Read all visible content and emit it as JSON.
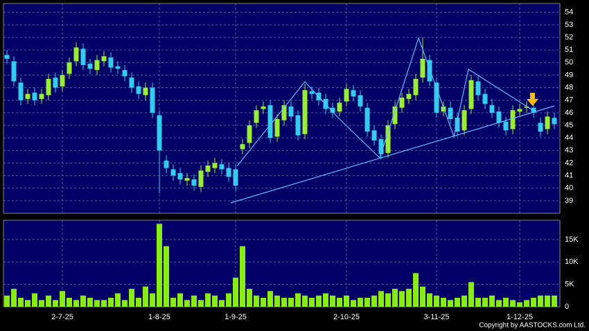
{
  "chart_data": {
    "type": "candlestick",
    "categories": [
      null,
      null,
      null,
      null,
      null,
      null,
      null,
      null,
      "2-7-25",
      null,
      null,
      null,
      null,
      null,
      null,
      null,
      null,
      null,
      null,
      null,
      null,
      null,
      "1-8-25",
      null,
      null,
      null,
      null,
      null,
      null,
      null,
      null,
      null,
      null,
      "1-9-25",
      null,
      null,
      null,
      null,
      null,
      null,
      null,
      null,
      null,
      null,
      null,
      null,
      null,
      null,
      null,
      "2-10-25",
      null,
      null,
      null,
      null,
      null,
      null,
      null,
      null,
      null,
      null,
      null,
      null,
      "3-11-25",
      null,
      null,
      null,
      null,
      null,
      null,
      null,
      null,
      null,
      null,
      null,
      "1-12-25",
      null,
      null,
      null,
      null,
      null
    ],
    "open": [
      50.6,
      50.1,
      48.4,
      47.1,
      47.6,
      47.1,
      47.4,
      48.8,
      48.1,
      49.1,
      50.1,
      51.1,
      49.9,
      49.4,
      50.1,
      50.4,
      49.7,
      49.4,
      48.8,
      48.1,
      47.4,
      48,
      45.8,
      42.2,
      41.5,
      41.2,
      40.6,
      40.7,
      40.1,
      41.3,
      41.6,
      41.9,
      41.6,
      41.5,
      43.1,
      43.6,
      45.2,
      46.3,
      46.6,
      44.1,
      45.4,
      46.5,
      45.8,
      44.3,
      47.7,
      47.6,
      47.1,
      46.4,
      46.1,
      46.9,
      47.8,
      47.4,
      46.4,
      44.6,
      43.9,
      42.8,
      45.1,
      46.4,
      47.1,
      47.4,
      48.8,
      50.2,
      48.4,
      46.1,
      46.4,
      45.6,
      44.6,
      46.3,
      48.5,
      47.5,
      46.6,
      46.1,
      45.3,
      44.7,
      46.1,
      46.4,
      46.4,
      45.2,
      44.7,
      45.6
    ],
    "high": [
      51.0,
      50.5,
      48.8,
      47.9,
      48.0,
      47.9,
      49.1,
      49.2,
      49.4,
      50.4,
      51.6,
      51.5,
      50.3,
      50.6,
      50.9,
      50.8,
      50.1,
      49.8,
      49.2,
      48.5,
      48.4,
      48.4,
      46.2,
      42.6,
      41.9,
      41.6,
      41.2,
      41.1,
      41.8,
      42.2,
      42.4,
      42.3,
      42.0,
      41.9,
      43.9,
      45.4,
      46.6,
      46.9,
      47.0,
      45.9,
      47.0,
      46.9,
      46.2,
      48.3,
      48.1,
      48.0,
      47.5,
      46.8,
      47.2,
      48.3,
      48.2,
      47.8,
      46.8,
      45.0,
      44.3,
      45.4,
      46.9,
      47.6,
      47.9,
      49.1,
      52.0,
      50.6,
      48.8,
      46.9,
      46.9,
      46.0,
      46.6,
      49.0,
      48.9,
      47.9,
      47.1,
      46.5,
      45.7,
      46.6,
      46.7,
      46.9,
      46.9,
      45.6,
      46.1,
      46.0
    ],
    "low": [
      49.9,
      48.1,
      46.6,
      46.7,
      46.6,
      46.7,
      47.0,
      47.6,
      47.7,
      48.7,
      49.7,
      49.4,
      49.1,
      49.0,
      49.7,
      49.2,
      49.1,
      48.5,
      47.6,
      47.1,
      47.0,
      45.6,
      39.6,
      41.2,
      40.6,
      40.3,
      40.2,
      39.8,
      39.7,
      40.9,
      41.2,
      41.1,
      40.5,
      39.8,
      42.7,
      43.2,
      44.8,
      45.9,
      43.6,
      43.7,
      45.0,
      45.3,
      43.8,
      43.9,
      47.1,
      46.6,
      45.9,
      45.6,
      45.7,
      46.5,
      46.9,
      46.1,
      44.1,
      43.4,
      42.3,
      42.4,
      44.7,
      46.0,
      46.7,
      47.0,
      48.4,
      48.1,
      45.6,
      45.7,
      45.1,
      44.1,
      44.2,
      45.9,
      47.0,
      46.3,
      45.6,
      44.8,
      44.2,
      44.3,
      45.7,
      46.0,
      45.6,
      44.1,
      44.3,
      44.7
    ],
    "close": [
      50.3,
      48.5,
      47,
      47.5,
      47,
      47.5,
      48.7,
      48,
      49,
      50,
      51.2,
      49.8,
      49.5,
      50.2,
      50.5,
      49.6,
      49.5,
      48.9,
      48,
      47.5,
      48,
      46,
      43,
      41.6,
      41,
      40.7,
      40.8,
      40.2,
      41.4,
      41.8,
      42,
      41.5,
      40.9,
      40.2,
      43.5,
      45,
      46.2,
      46.5,
      44,
      45.5,
      46.6,
      45.7,
      44.2,
      47.8,
      47.5,
      47,
      46.3,
      46,
      46.8,
      47.9,
      47.3,
      46.5,
      44.5,
      43.8,
      42.7,
      45,
      46.5,
      47.2,
      47.5,
      48.7,
      50.3,
      48.5,
      46,
      46.5,
      45.5,
      44.5,
      46.2,
      48.6,
      47.4,
      46.7,
      46,
      45.2,
      44.6,
      46.2,
      46.3,
      46.5,
      46,
      44.5,
      45.7,
      45.1
    ],
    "volume": [
      2500,
      4000,
      2000,
      1500,
      3000,
      1500,
      2500,
      1500,
      3500,
      2000,
      1500,
      2500,
      2000,
      1500,
      1500,
      2000,
      3000,
      1500,
      4000,
      2000,
      4500,
      3000,
      18500,
      13500,
      2000,
      3000,
      1500,
      2500,
      1500,
      3000,
      2500,
      1500,
      3000,
      6500,
      13500,
      4000,
      2500,
      2000,
      3500,
      2500,
      2000,
      2000,
      3000,
      2500,
      2000,
      2500,
      3000,
      2500,
      2000,
      2500,
      1500,
      2000,
      2000,
      2500,
      3500,
      3000,
      4000,
      3500,
      4000,
      7500,
      4500,
      3000,
      2500,
      2000,
      1500,
      2000,
      2500,
      5500,
      2000,
      2000,
      2500,
      1500,
      2000,
      1500,
      1000,
      1500,
      2000,
      2500,
      2500,
      2500
    ],
    "up_color": "#99ee33",
    "down_color": "#33ccee",
    "volume_color": "#88ee11",
    "ylim": [
      38,
      54.7
    ],
    "yticks": [
      39,
      40,
      41,
      42,
      43,
      44,
      45,
      46,
      47,
      48,
      49,
      50,
      51,
      52,
      53,
      54
    ],
    "y2lim": [
      0,
      19300
    ],
    "y2ticks": [
      {
        "value": 0,
        "label": "0"
      },
      {
        "value": 5000,
        "label": "5K"
      },
      {
        "value": 10000,
        "label": "10K"
      },
      {
        "value": 15000,
        "label": "15K"
      }
    ],
    "grid": true,
    "source": "Copyright by AASTOCKS.com Ltd."
  }
}
